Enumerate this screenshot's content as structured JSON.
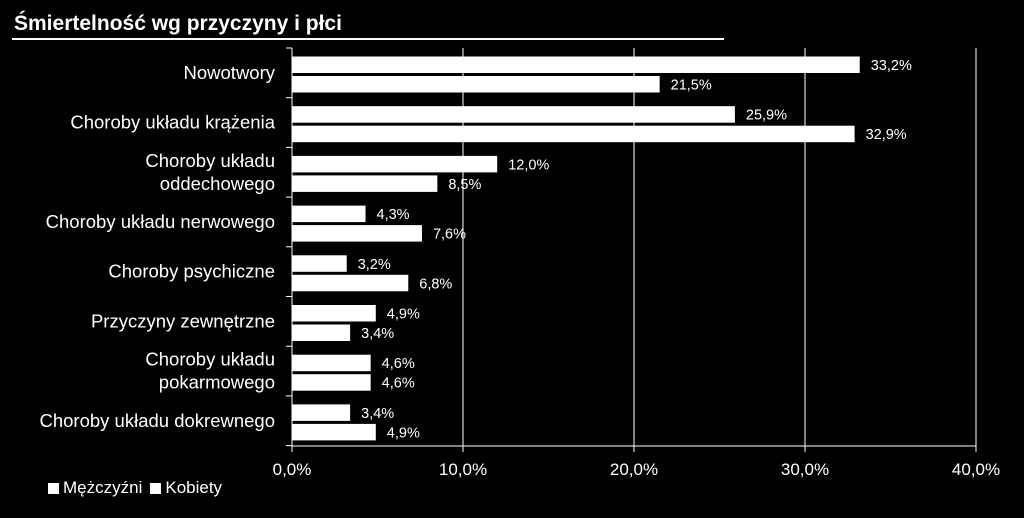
{
  "chart_data": {
    "type": "bar",
    "orientation": "horizontal",
    "title": "Śmiertelność wg przyczyny i płci",
    "categories": [
      [
        "Nowotwory"
      ],
      [
        "Choroby układu krążenia"
      ],
      [
        "Choroby układu",
        "oddechowego"
      ],
      [
        "Choroby układu nerwowego"
      ],
      [
        "Choroby psychiczne"
      ],
      [
        "Przyczyny zewnętrzne"
      ],
      [
        "Choroby układu",
        "pokarmowego"
      ],
      [
        "Choroby układu dokrewnego"
      ]
    ],
    "series": [
      {
        "name": "Mężczyźni",
        "values": [
          33.2,
          25.9,
          12.0,
          4.3,
          3.2,
          4.9,
          4.6,
          3.4
        ],
        "labels": [
          "33,2%",
          "25,9%",
          "12,0%",
          "4,3%",
          "3,2%",
          "4,9%",
          "4,6%",
          "3,4%"
        ]
      },
      {
        "name": "Kobiety",
        "values": [
          21.5,
          32.9,
          8.5,
          7.6,
          6.8,
          3.4,
          4.6,
          4.9
        ],
        "labels": [
          "21,5%",
          "32,9%",
          "8,5%",
          "7,6%",
          "6,8%",
          "3,4%",
          "4,6%",
          "4,9%"
        ]
      }
    ],
    "xlim": [
      0,
      40
    ],
    "xticks": [
      0,
      10,
      20,
      30,
      40
    ],
    "xtick_labels": [
      "0,0%",
      "10,0%",
      "20,0%",
      "30,0%",
      "40,0%"
    ],
    "grid": "vertical",
    "legend_position": "bottom-left",
    "colors": {
      "background": "#000000",
      "bar": "#ffffff",
      "text": "#ffffff",
      "grid": "#ffffff"
    }
  }
}
